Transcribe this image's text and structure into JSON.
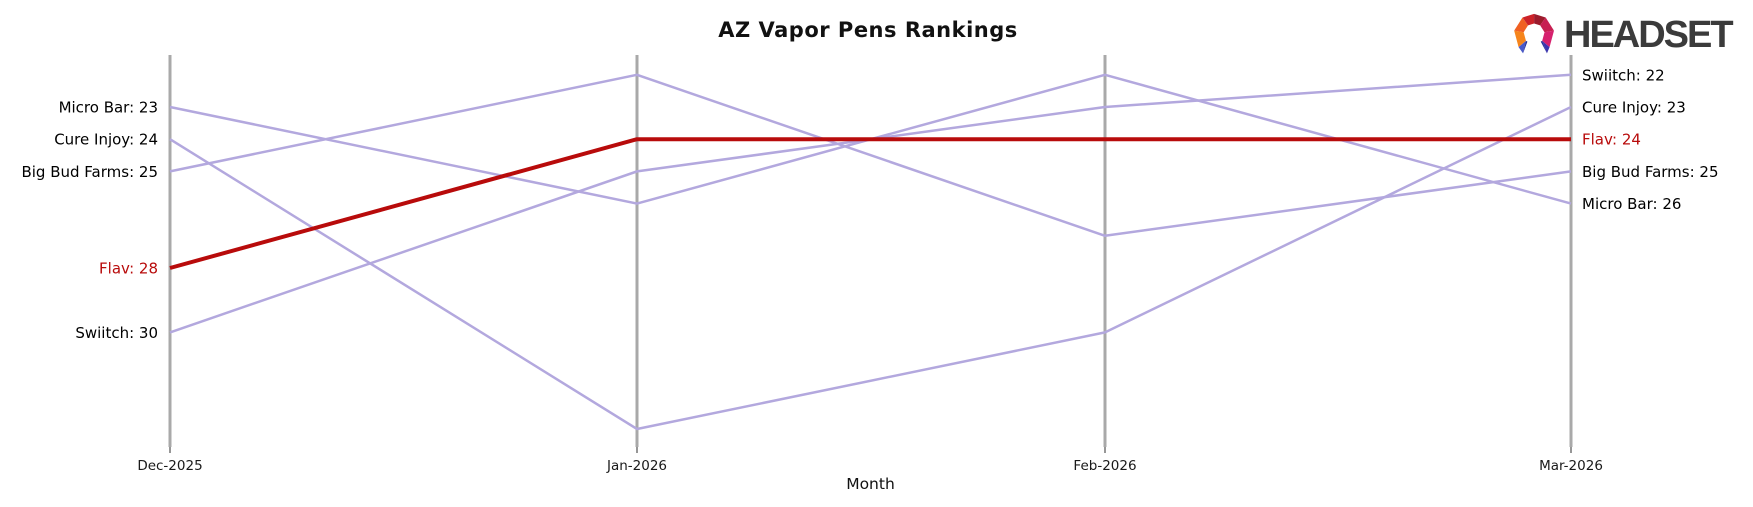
{
  "title": "AZ Vapor Pens Rankings",
  "logo": {
    "brand": "HEADSET"
  },
  "chart_data": {
    "type": "line",
    "subtype": "bump-ranking-parallel-axes",
    "title": "AZ Vapor Pens Rankings",
    "x": [
      "Dec-2025",
      "Jan-2026",
      "Feb-2026",
      "Mar-2026"
    ],
    "xlabel": "Month",
    "value_axis": "rank",
    "axis_note": "lower rank number plotted higher; vertical month axes, no y tick marks",
    "series": [
      {
        "name": "Micro Bar",
        "values": [
          23,
          26,
          22,
          26
        ],
        "highlight": false
      },
      {
        "name": "Cure Injoy",
        "values": [
          24,
          33,
          30,
          23
        ],
        "highlight": false
      },
      {
        "name": "Big Bud Farms",
        "values": [
          25,
          22,
          27,
          25
        ],
        "highlight": false
      },
      {
        "name": "Flav",
        "values": [
          28,
          24,
          24,
          24
        ],
        "highlight": true
      },
      {
        "name": "Swiitch",
        "values": [
          30,
          25,
          23,
          22
        ],
        "highlight": false
      }
    ],
    "left_labels": [
      "Micro Bar: 23",
      "Cure Injoy: 24",
      "Big Bud Farms: 25",
      "Flav: 28",
      "Swiitch: 30"
    ],
    "right_labels": [
      "Swiitch: 22",
      "Cure Injoy: 23",
      "Flav: 24",
      "Big Bud Farms: 25",
      "Micro Bar: 26"
    ],
    "colors": {
      "highlight_line": "#b80b0b",
      "line": "#b3a8de",
      "axis": "#a9a9a9",
      "text": "#000000"
    },
    "legend": "none"
  }
}
